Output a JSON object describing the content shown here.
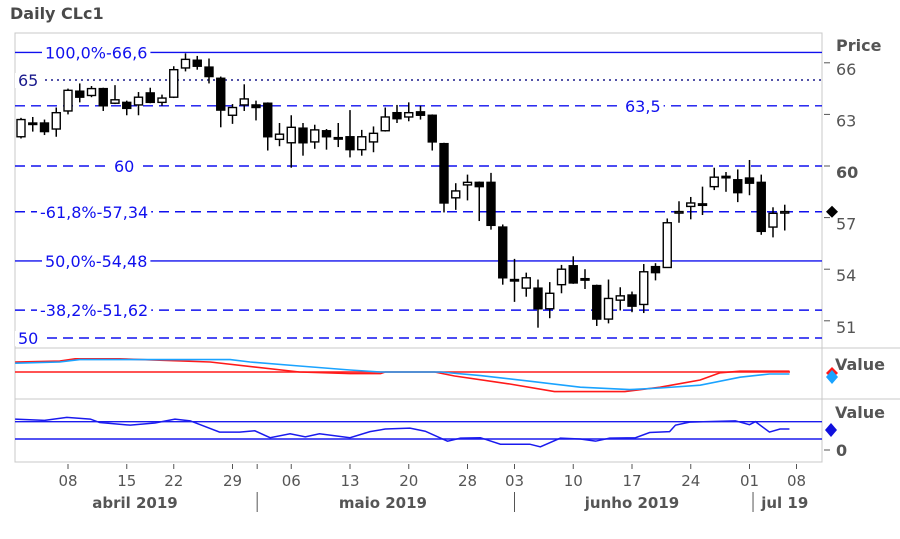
{
  "title": "Daily CLc1",
  "colors": {
    "fib": "#1010ee",
    "fib_dark": "#1a1a8c",
    "red": "#ff1a1a",
    "cyan": "#1aa3ff",
    "rsi": "#1a1aee",
    "frame": "#c8c8c8",
    "axis_text": "#555555"
  },
  "chart_data": {
    "type": "candlestick",
    "title": "Daily CLc1",
    "price_axis": {
      "label": "Price",
      "ticks": [
        66,
        63,
        60,
        57,
        54,
        51
      ],
      "bold_tick": 60,
      "range": [
        49.5,
        67.7
      ]
    },
    "last_price": 57.34,
    "levels": [
      {
        "value": 66.6,
        "label": "100,0%-66,6",
        "style": "solid",
        "label_pos": "left"
      },
      {
        "value": 65,
        "label": "65",
        "style": "dotted",
        "label_pos": "far-left"
      },
      {
        "value": 63.5,
        "label": "63,5",
        "style": "dashed",
        "label_pos": "right"
      },
      {
        "value": 60,
        "label": "60",
        "style": "dashed",
        "label_pos": "left"
      },
      {
        "value": 57.34,
        "label": "-61,8%-57,34",
        "style": "dashed",
        "label_pos": "left"
      },
      {
        "value": 54.48,
        "label": "50,0%-54,48",
        "style": "solid",
        "label_pos": "left"
      },
      {
        "value": 51.62,
        "label": "-38,2%-51,62",
        "style": "dashed",
        "label_pos": "left"
      },
      {
        "value": 50,
        "label": "50",
        "style": "dashed",
        "label_pos": "far-left"
      }
    ],
    "ohlc": [
      [
        61.7,
        62.8,
        61.6,
        62.7
      ],
      [
        62.5,
        62.85,
        62.0,
        62.45
      ],
      [
        62.5,
        62.7,
        61.8,
        62.0
      ],
      [
        62.15,
        63.4,
        61.7,
        63.1
      ],
      [
        63.2,
        64.5,
        63.0,
        64.4
      ],
      [
        64.35,
        64.8,
        63.7,
        64.0
      ],
      [
        64.1,
        64.65,
        64.0,
        64.5
      ],
      [
        64.5,
        64.55,
        63.2,
        63.5
      ],
      [
        63.65,
        64.7,
        63.6,
        63.85
      ],
      [
        63.7,
        63.8,
        62.95,
        63.35
      ],
      [
        63.55,
        64.3,
        62.95,
        64.0
      ],
      [
        64.25,
        64.55,
        63.65,
        63.7
      ],
      [
        63.7,
        64.15,
        63.5,
        63.95
      ],
      [
        64.0,
        65.8,
        63.95,
        65.6
      ],
      [
        65.7,
        66.55,
        65.5,
        66.2
      ],
      [
        66.15,
        66.4,
        65.6,
        65.8
      ],
      [
        65.75,
        66.25,
        64.8,
        65.2
      ],
      [
        65.1,
        65.2,
        62.25,
        63.25
      ],
      [
        62.95,
        63.6,
        62.45,
        63.4
      ],
      [
        63.55,
        64.75,
        63.2,
        63.9
      ],
      [
        63.55,
        63.8,
        62.65,
        63.4
      ],
      [
        63.65,
        63.7,
        60.9,
        61.7
      ],
      [
        61.55,
        62.5,
        61.15,
        61.85
      ],
      [
        61.35,
        62.95,
        59.9,
        62.25
      ],
      [
        62.2,
        62.5,
        60.6,
        61.35
      ],
      [
        61.4,
        62.4,
        61.0,
        62.1
      ],
      [
        62.05,
        62.15,
        60.95,
        61.7
      ],
      [
        61.65,
        62.5,
        61.1,
        61.6
      ],
      [
        61.7,
        63.25,
        60.5,
        60.95
      ],
      [
        60.95,
        62.1,
        60.6,
        61.7
      ],
      [
        61.4,
        62.3,
        60.8,
        61.9
      ],
      [
        62.05,
        63.4,
        62.0,
        62.85
      ],
      [
        63.1,
        63.55,
        62.5,
        62.75
      ],
      [
        62.85,
        63.7,
        62.6,
        63.1
      ],
      [
        63.15,
        63.5,
        62.7,
        62.95
      ],
      [
        62.95,
        63.0,
        60.9,
        61.4
      ],
      [
        61.3,
        61.35,
        57.3,
        57.85
      ],
      [
        58.15,
        59.0,
        57.45,
        58.55
      ],
      [
        58.9,
        59.5,
        58.0,
        59.05
      ],
      [
        59.05,
        59.1,
        56.8,
        58.8
      ],
      [
        59.05,
        59.6,
        56.3,
        56.55
      ],
      [
        56.45,
        56.6,
        53.1,
        53.5
      ],
      [
        53.4,
        54.6,
        52.1,
        53.35
      ],
      [
        52.9,
        53.8,
        52.4,
        53.5
      ],
      [
        52.9,
        53.4,
        50.6,
        51.7
      ],
      [
        51.7,
        53.25,
        51.15,
        52.6
      ],
      [
        53.1,
        54.25,
        52.6,
        54.0
      ],
      [
        54.2,
        54.75,
        53.15,
        53.2
      ],
      [
        53.45,
        54.0,
        52.85,
        53.4
      ],
      [
        53.05,
        53.1,
        50.7,
        51.1
      ],
      [
        51.1,
        53.4,
        50.85,
        52.3
      ],
      [
        52.2,
        52.95,
        51.6,
        52.45
      ],
      [
        52.5,
        52.7,
        51.5,
        51.85
      ],
      [
        51.95,
        54.3,
        51.45,
        53.85
      ],
      [
        54.15,
        54.35,
        53.35,
        53.8
      ],
      [
        54.1,
        56.95,
        54.1,
        56.7
      ],
      [
        57.3,
        57.95,
        56.7,
        57.35
      ],
      [
        57.65,
        58.2,
        56.9,
        57.85
      ],
      [
        57.8,
        58.8,
        57.15,
        57.75
      ],
      [
        58.8,
        59.9,
        58.6,
        59.35
      ],
      [
        59.4,
        59.65,
        58.5,
        59.35
      ],
      [
        59.2,
        59.8,
        57.9,
        58.45
      ],
      [
        59.3,
        60.35,
        58.3,
        59.0
      ],
      [
        59.05,
        59.5,
        56.0,
        56.2
      ],
      [
        56.45,
        57.6,
        55.85,
        57.25
      ],
      [
        57.3,
        57.75,
        56.25,
        57.35
      ]
    ],
    "x_ticks": [
      {
        "label": "08",
        "index": 4
      },
      {
        "label": "15",
        "index": 9
      },
      {
        "label": "22",
        "index": 13
      },
      {
        "label": "29",
        "index": 18
      },
      {
        "label": "06",
        "index": 23
      },
      {
        "label": "13",
        "index": 28
      },
      {
        "label": "20",
        "index": 33
      },
      {
        "label": "28",
        "index": 38
      },
      {
        "label": "03",
        "index": 42
      },
      {
        "label": "10",
        "index": 47
      },
      {
        "label": "17",
        "index": 52
      },
      {
        "label": "24",
        "index": 57
      },
      {
        "label": "01",
        "index": 62
      },
      {
        "label": "08",
        "index": 66
      }
    ],
    "months": [
      {
        "label": "abril 2019",
        "center_index": 9.7
      },
      {
        "label": "maio 2019",
        "center_index": 30.8
      },
      {
        "label": "junho 2019",
        "center_index": 52
      },
      {
        "label": "jul 19",
        "center_index": 65
      }
    ],
    "month_separators": [
      20.1,
      42,
      62.3
    ],
    "extra_tick_index": 20.1,
    "pane2": {
      "label": "Value",
      "baseline": 50,
      "range": [
        0,
        100
      ],
      "series": [
        {
          "name": "red",
          "color_key": "red",
          "points": [
            [
              -0.5,
              75
            ],
            [
              3.3,
              77.5
            ],
            [
              4.6,
              83
            ],
            [
              8.4,
              83
            ],
            [
              16.1,
              75
            ],
            [
              23.7,
              50
            ],
            [
              28,
              46
            ],
            [
              30.6,
              46
            ],
            [
              31,
              50
            ],
            [
              35.2,
              50
            ],
            [
              36.9,
              40
            ],
            [
              41.6,
              20
            ],
            [
              45.4,
              1
            ],
            [
              51.4,
              1
            ],
            [
              54.4,
              12
            ],
            [
              57.8,
              30
            ],
            [
              59.5,
              48
            ],
            [
              61.2,
              52
            ],
            [
              65.4,
              52
            ]
          ]
        },
        {
          "name": "cyan",
          "color_key": "cyan",
          "points": [
            [
              -0.5,
              72
            ],
            [
              3.3,
              75
            ],
            [
              5,
              81
            ],
            [
              17.8,
              81
            ],
            [
              19.5,
              75
            ],
            [
              23.7,
              65
            ],
            [
              28,
              55
            ],
            [
              30.6,
              50
            ],
            [
              35.7,
              50
            ],
            [
              39.1,
              41
            ],
            [
              43.3,
              27
            ],
            [
              47.6,
              12
            ],
            [
              51.8,
              6
            ],
            [
              54.4,
              10
            ],
            [
              57.8,
              17
            ],
            [
              61.2,
              37
            ],
            [
              63.7,
              45
            ],
            [
              65.4,
              45
            ]
          ]
        }
      ]
    },
    "pane3": {
      "label": "Value",
      "tick": "0",
      "levels": [
        70,
        30
      ],
      "range": [
        0,
        100
      ],
      "series": [
        {
          "name": "rsi",
          "color_key": "rsi",
          "points": [
            [
              -0.5,
              76
            ],
            [
              2,
              73
            ],
            [
              3.9,
              80
            ],
            [
              5.9,
              76
            ],
            [
              6.7,
              68
            ],
            [
              9.3,
              62
            ],
            [
              11.4,
              67
            ],
            [
              13.1,
              76
            ],
            [
              14.4,
              72
            ],
            [
              16.9,
              46
            ],
            [
              18.6,
              46
            ],
            [
              19.9,
              49
            ],
            [
              21.2,
              33
            ],
            [
              22.9,
              42
            ],
            [
              24.2,
              35
            ],
            [
              25.4,
              42
            ],
            [
              28,
              33
            ],
            [
              29.7,
              47
            ],
            [
              31,
              53
            ],
            [
              33.1,
              55
            ],
            [
              34.4,
              48
            ],
            [
              36.3,
              25
            ],
            [
              37.4,
              32
            ],
            [
              39.1,
              33
            ],
            [
              40.8,
              18
            ],
            [
              43.3,
              18
            ],
            [
              44.2,
              12
            ],
            [
              45.9,
              32
            ],
            [
              47.6,
              30
            ],
            [
              48.9,
              25
            ],
            [
              50.1,
              32
            ],
            [
              52.3,
              33
            ],
            [
              53.5,
              45
            ],
            [
              55.2,
              47
            ],
            [
              55.7,
              62
            ],
            [
              56.9,
              69
            ],
            [
              60.8,
              72
            ],
            [
              62,
              63
            ],
            [
              62.5,
              70
            ],
            [
              63.7,
              46
            ],
            [
              64.6,
              53
            ],
            [
              65.4,
              53
            ]
          ]
        }
      ]
    }
  }
}
